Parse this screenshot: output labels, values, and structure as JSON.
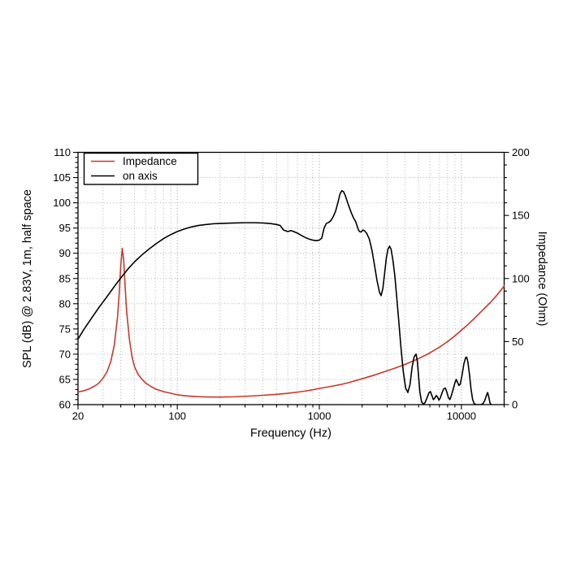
{
  "chart_data": {
    "type": "line",
    "title": "",
    "xlabel": "Frequency (Hz)",
    "ylabel_left": "SPL (dB) @ 2.83V, 1m, half space",
    "ylabel_right": "Impedance (Ohm)",
    "x_scale": "log",
    "xlim": [
      20,
      20000
    ],
    "ylim_left": [
      60,
      110
    ],
    "ylim_right": [
      0,
      200
    ],
    "x_major_ticks": [
      20,
      100,
      1000,
      10000
    ],
    "x_major_tick_labels": [
      "20",
      "100",
      "1000",
      "10000"
    ],
    "y_left_major_ticks": [
      60,
      65,
      70,
      75,
      80,
      85,
      90,
      95,
      100,
      105,
      110
    ],
    "y_left_minor_step": 1,
    "y_right_major_ticks": [
      0,
      50,
      100,
      150,
      200
    ],
    "y_right_minor_step": 10,
    "grid": "dotted",
    "grid_color": "#b0b0b0",
    "grid_major_color": "#8f8f8f",
    "frame_color": "#000000",
    "legend_position": "top-left",
    "series": [
      {
        "name": "Impedance",
        "axis": "right",
        "unit": "Ohm",
        "color": "#c8392a",
        "points": [
          [
            20,
            10
          ],
          [
            22,
            11
          ],
          [
            24,
            12.5
          ],
          [
            26,
            14.5
          ],
          [
            28,
            17
          ],
          [
            30,
            21
          ],
          [
            32,
            26
          ],
          [
            34,
            34
          ],
          [
            36,
            47
          ],
          [
            38,
            70
          ],
          [
            39,
            88
          ],
          [
            40,
            110
          ],
          [
            41,
            124
          ],
          [
            42,
            114
          ],
          [
            43,
            92
          ],
          [
            44,
            74
          ],
          [
            46,
            52
          ],
          [
            48,
            38
          ],
          [
            50,
            30
          ],
          [
            53,
            24
          ],
          [
            56,
            20.5
          ],
          [
            60,
            17
          ],
          [
            65,
            14.5
          ],
          [
            70,
            12.5
          ],
          [
            80,
            10.3
          ],
          [
            90,
            9
          ],
          [
            100,
            7.8
          ],
          [
            110,
            7.2
          ],
          [
            120,
            6.8
          ],
          [
            140,
            6.3
          ],
          [
            160,
            6.1
          ],
          [
            200,
            6
          ],
          [
            250,
            6.2
          ],
          [
            300,
            6.6
          ],
          [
            350,
            7
          ],
          [
            400,
            7.4
          ],
          [
            500,
            8.2
          ],
          [
            600,
            9
          ],
          [
            700,
            9.9
          ],
          [
            800,
            10.8
          ],
          [
            900,
            11.8
          ],
          [
            1000,
            12.8
          ],
          [
            1200,
            14.4
          ],
          [
            1400,
            15.8
          ],
          [
            1600,
            17.4
          ],
          [
            2000,
            20.5
          ],
          [
            2500,
            23.8
          ],
          [
            3000,
            26.8
          ],
          [
            3500,
            29.4
          ],
          [
            4000,
            31.8
          ],
          [
            5000,
            36.5
          ],
          [
            6000,
            41
          ],
          [
            7000,
            45.5
          ],
          [
            8000,
            50
          ],
          [
            9000,
            54.5
          ],
          [
            10000,
            59
          ],
          [
            11000,
            63
          ],
          [
            12500,
            69
          ],
          [
            14000,
            74.5
          ],
          [
            16000,
            81
          ],
          [
            18000,
            87.5
          ],
          [
            20000,
            94
          ]
        ]
      },
      {
        "name": "on axis",
        "axis": "left",
        "unit": "dB",
        "color": "#000000",
        "points": [
          [
            20,
            73
          ],
          [
            22,
            74.9
          ],
          [
            25,
            77.2
          ],
          [
            28,
            79.2
          ],
          [
            32,
            81.4
          ],
          [
            36,
            83.4
          ],
          [
            40,
            85.1
          ],
          [
            45,
            86.9
          ],
          [
            50,
            88.3
          ],
          [
            56,
            89.6
          ],
          [
            63,
            90.8
          ],
          [
            71,
            91.9
          ],
          [
            80,
            92.9
          ],
          [
            90,
            93.7
          ],
          [
            100,
            94.3
          ],
          [
            112,
            94.8
          ],
          [
            125,
            95.2
          ],
          [
            140,
            95.5
          ],
          [
            160,
            95.7
          ],
          [
            180,
            95.85
          ],
          [
            200,
            95.9
          ],
          [
            250,
            96
          ],
          [
            300,
            96.05
          ],
          [
            350,
            96.05
          ],
          [
            400,
            96
          ],
          [
            450,
            95.9
          ],
          [
            500,
            95.7
          ],
          [
            530,
            95.5
          ],
          [
            560,
            94.6
          ],
          [
            600,
            94.3
          ],
          [
            630,
            94.5
          ],
          [
            660,
            94.3
          ],
          [
            700,
            94
          ],
          [
            750,
            93.5
          ],
          [
            800,
            93.1
          ],
          [
            850,
            92.8
          ],
          [
            900,
            92.6
          ],
          [
            950,
            92.5
          ],
          [
            1000,
            92.6
          ],
          [
            1040,
            93
          ],
          [
            1080,
            95
          ],
          [
            1120,
            95.9
          ],
          [
            1160,
            96.1
          ],
          [
            1200,
            96.4
          ],
          [
            1250,
            97.2
          ],
          [
            1300,
            98.3
          ],
          [
            1350,
            100
          ],
          [
            1400,
            101.8
          ],
          [
            1440,
            102.4
          ],
          [
            1480,
            102.2
          ],
          [
            1520,
            101.5
          ],
          [
            1570,
            100.3
          ],
          [
            1620,
            99.2
          ],
          [
            1680,
            98
          ],
          [
            1740,
            97
          ],
          [
            1800,
            96.3
          ],
          [
            1840,
            95.5
          ],
          [
            1880,
            94.7
          ],
          [
            1920,
            94.3
          ],
          [
            1970,
            94.2
          ],
          [
            2020,
            94.6
          ],
          [
            2070,
            94.5
          ],
          [
            2150,
            94
          ],
          [
            2250,
            92.8
          ],
          [
            2350,
            90.5
          ],
          [
            2450,
            87.5
          ],
          [
            2550,
            84.5
          ],
          [
            2650,
            82.3
          ],
          [
            2720,
            81.6
          ],
          [
            2800,
            83
          ],
          [
            2880,
            86
          ],
          [
            2960,
            89
          ],
          [
            3040,
            90.8
          ],
          [
            3120,
            91.4
          ],
          [
            3200,
            90.8
          ],
          [
            3300,
            88.5
          ],
          [
            3400,
            85.5
          ],
          [
            3500,
            81.5
          ],
          [
            3600,
            77.5
          ],
          [
            3750,
            71.5
          ],
          [
            3900,
            66.5
          ],
          [
            4050,
            63.3
          ],
          [
            4200,
            62.4
          ],
          [
            4350,
            64
          ],
          [
            4500,
            67.5
          ],
          [
            4650,
            69.5
          ],
          [
            4800,
            70
          ],
          [
            4900,
            68.5
          ],
          [
            5000,
            65.5
          ],
          [
            5100,
            62.5
          ],
          [
            5250,
            60.5
          ],
          [
            5400,
            60.1
          ],
          [
            5550,
            60.4
          ],
          [
            5700,
            61.2
          ],
          [
            5900,
            62.3
          ],
          [
            6050,
            62.6
          ],
          [
            6200,
            61.8
          ],
          [
            6350,
            61
          ],
          [
            6500,
            61.3
          ],
          [
            6650,
            61.8
          ],
          [
            6800,
            61.5
          ],
          [
            6950,
            60.9
          ],
          [
            7100,
            61.3
          ],
          [
            7300,
            62.3
          ],
          [
            7500,
            63.1
          ],
          [
            7700,
            63.3
          ],
          [
            7900,
            62.5
          ],
          [
            8100,
            61.4
          ],
          [
            8300,
            61
          ],
          [
            8500,
            61.8
          ],
          [
            8700,
            62.8
          ],
          [
            9000,
            64.3
          ],
          [
            9200,
            65
          ],
          [
            9400,
            64.4
          ],
          [
            9600,
            63.8
          ],
          [
            9800,
            64
          ],
          [
            10100,
            65.8
          ],
          [
            10400,
            68
          ],
          [
            10700,
            69.3
          ],
          [
            10900,
            69.4
          ],
          [
            11100,
            68.5
          ],
          [
            11400,
            66
          ],
          [
            11700,
            63
          ],
          [
            12000,
            61
          ],
          [
            12300,
            60.2
          ],
          [
            12700,
            60
          ],
          [
            13200,
            60
          ],
          [
            13700,
            60
          ],
          [
            14200,
            60.2
          ],
          [
            14600,
            60.8
          ],
          [
            15000,
            61.8
          ],
          [
            15300,
            62.4
          ],
          [
            15600,
            61.5
          ],
          [
            15900,
            60.3
          ],
          [
            16200,
            60
          ]
        ]
      }
    ]
  }
}
